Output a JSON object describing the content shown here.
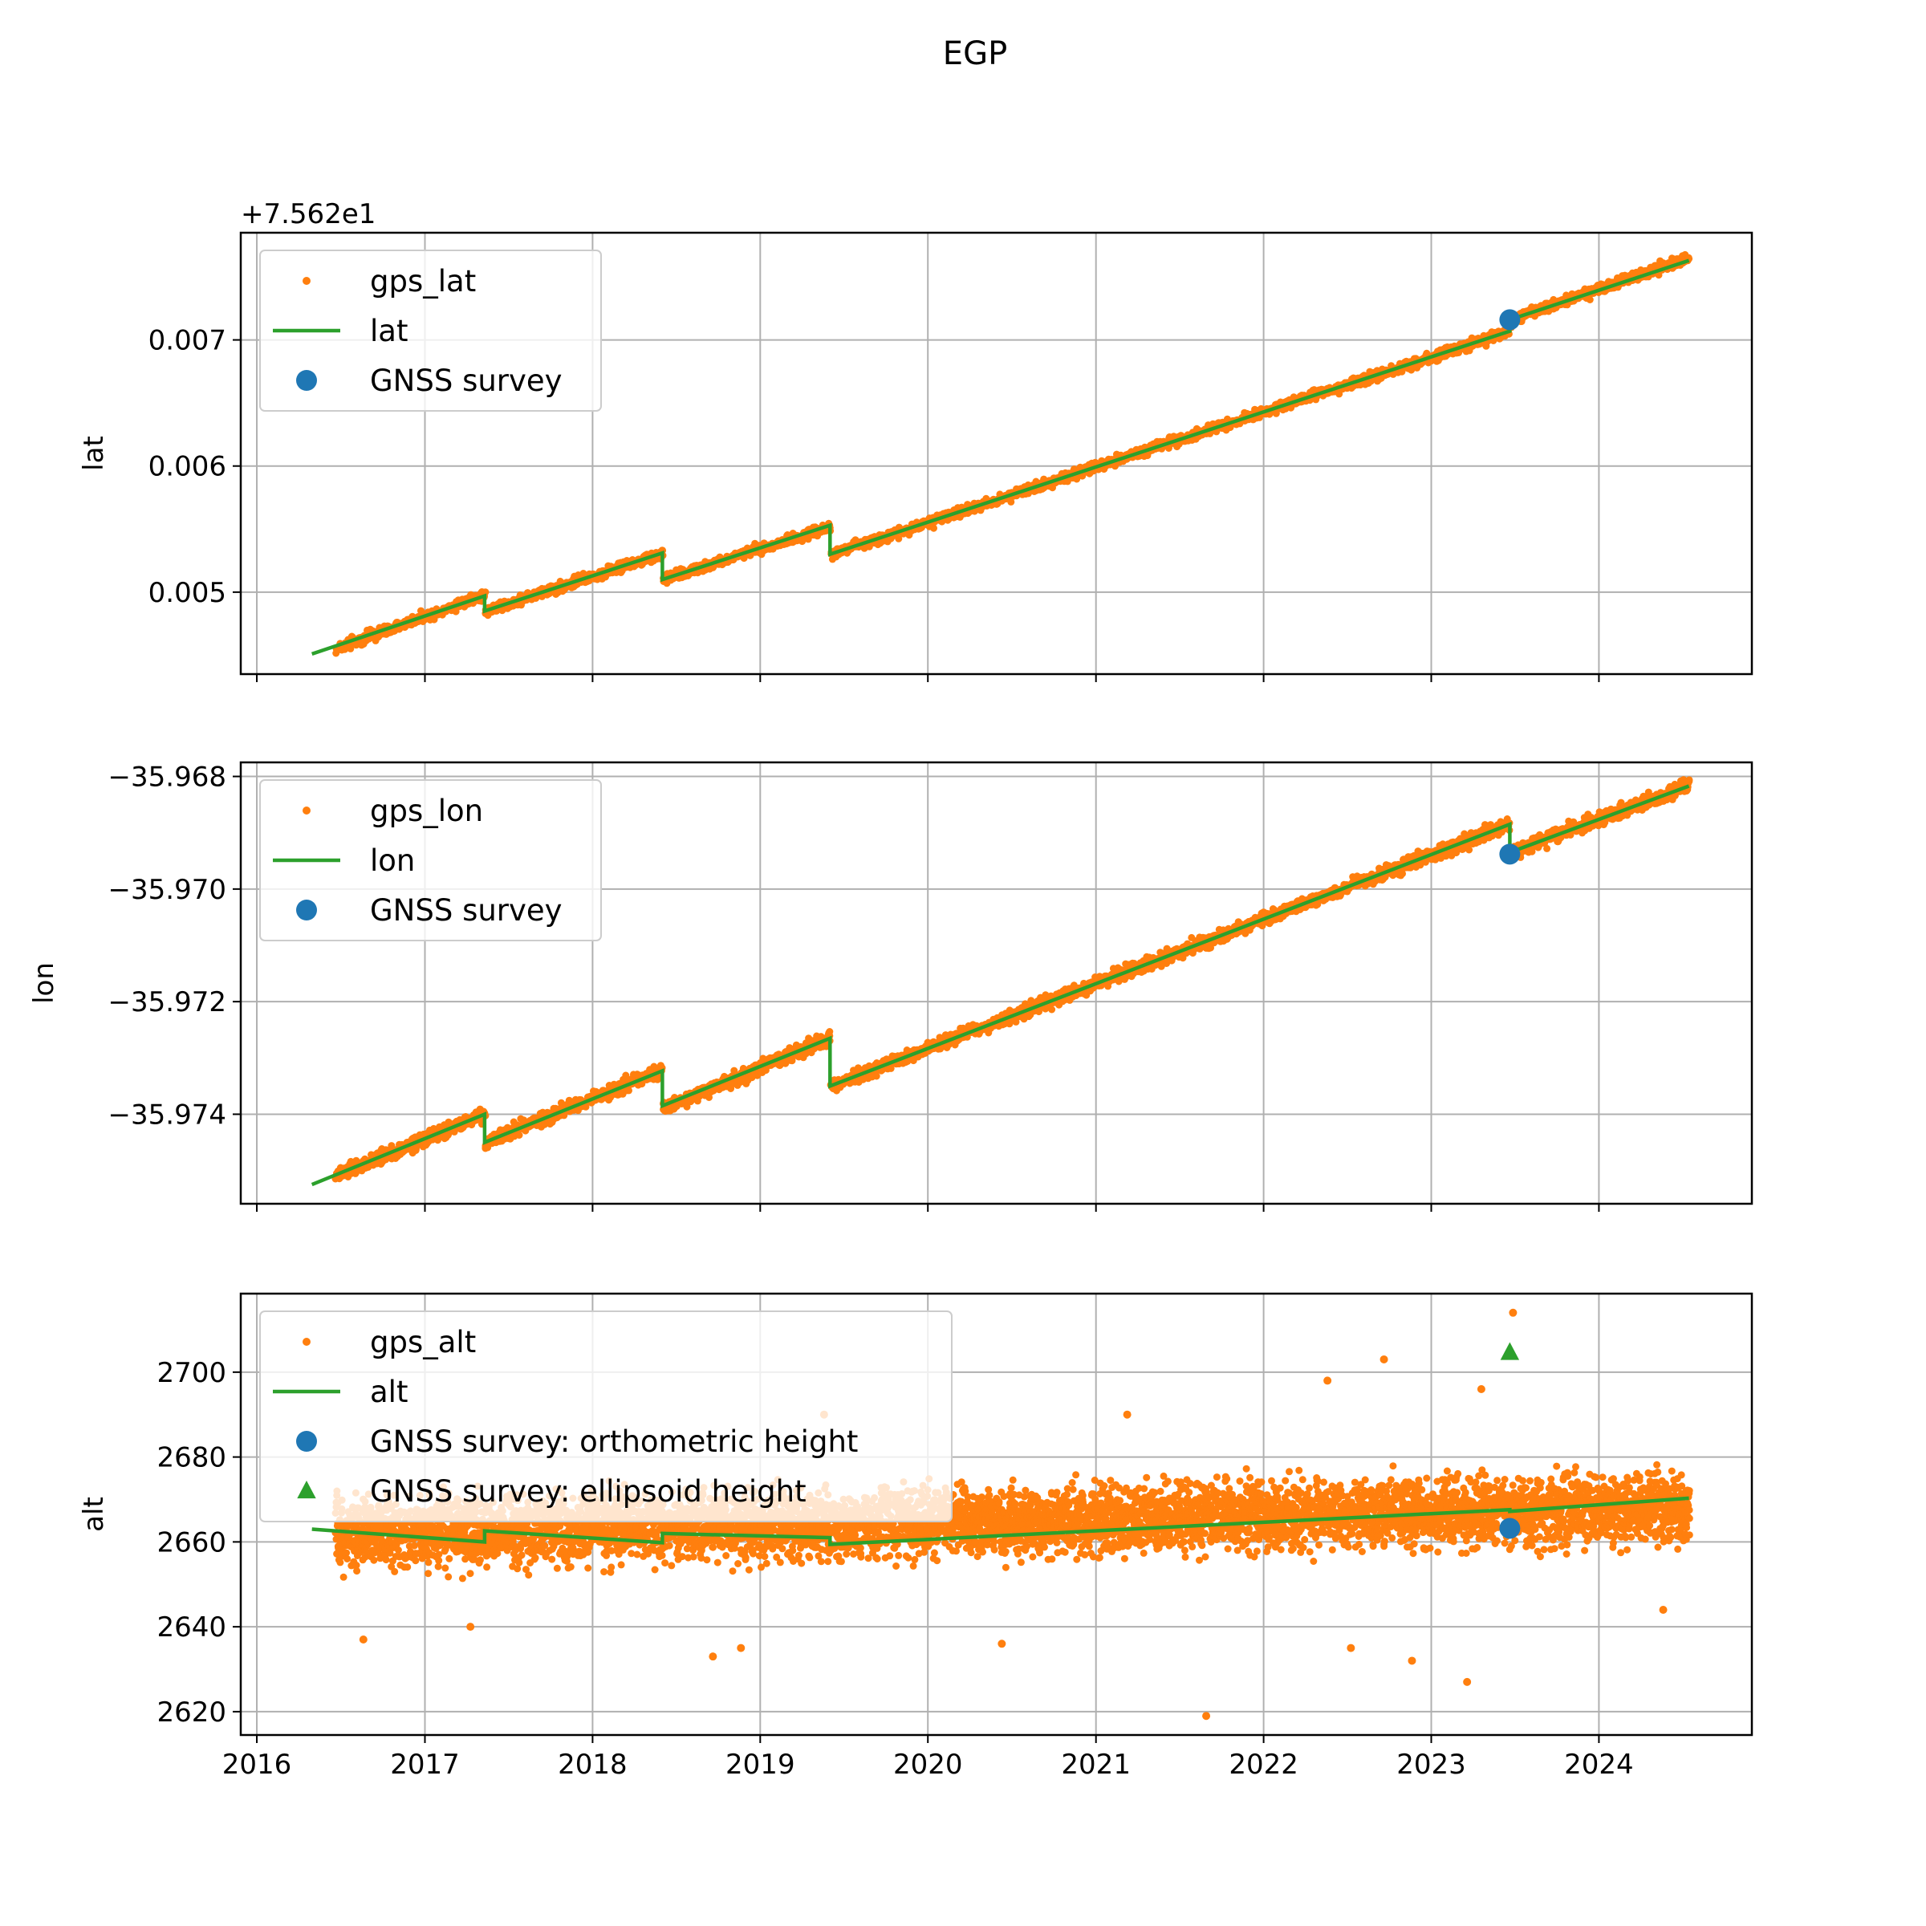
{
  "figure_title": "EGP",
  "colors": {
    "gps": "#ff7f0e",
    "fit": "#2ca02c",
    "survey_ortho": "#1f77b4",
    "survey_ellipsoid": "#2ca02c",
    "grid": "#b0b0b0"
  },
  "x_axis": {
    "type": "date",
    "range": [
      "2015-11-27",
      "2024-11-29"
    ],
    "ticks": [
      "2016",
      "2017",
      "2018",
      "2019",
      "2020",
      "2021",
      "2022",
      "2023",
      "2024"
    ],
    "grid": true
  },
  "chart_data": [
    {
      "type": "scatter",
      "ylabel": "lat",
      "offset_text": "+7.562e1",
      "ylim": [
        0.00435,
        0.00785
      ],
      "yticks": [
        0.005,
        0.006,
        0.007
      ],
      "ytick_labels": [
        "0.005",
        "0.006",
        "0.007"
      ],
      "grid": true,
      "legend_position": "upper-left",
      "legend": [
        {
          "label": "gps_lat",
          "marker": "dot",
          "color": "#ff7f0e"
        },
        {
          "label": "lat",
          "marker": "line",
          "color": "#2ca02c"
        },
        {
          "label": "GNSS survey",
          "marker": "circle",
          "color": "#1f77b4"
        }
      ],
      "series": [
        {
          "name": "gps_lat",
          "style": "points",
          "color": "#ff7f0e",
          "scatter_spread": 4e-05,
          "segments": [
            {
              "start": "2016-06-20",
              "end": "2017-05-10",
              "y_start": 0.00455,
              "y_end": 0.00498
            },
            {
              "start": "2017-05-12",
              "end": "2018-06-01",
              "y_start": 0.00485,
              "y_end": 0.0053
            },
            {
              "start": "2018-06-03",
              "end": "2019-06-01",
              "y_start": 0.0051,
              "y_end": 0.00552
            },
            {
              "start": "2019-06-03",
              "end": "2023-06-20",
              "y_start": 0.0053,
              "y_end": 0.00707
            },
            {
              "start": "2023-06-22",
              "end": "2024-07-15",
              "y_start": 0.00716,
              "y_end": 0.00765
            }
          ]
        },
        {
          "name": "lat",
          "style": "line",
          "color": "#2ca02c",
          "points": [
            [
              "2016-04-30",
              0.00451
            ],
            [
              "2017-05-11",
              0.00497
            ],
            [
              "2017-05-11",
              0.00485
            ],
            [
              "2018-06-02",
              0.00531
            ],
            [
              "2018-06-02",
              0.0051
            ],
            [
              "2019-06-02",
              0.00553
            ],
            [
              "2019-06-02",
              0.0053
            ],
            [
              "2023-06-21",
              0.00707
            ],
            [
              "2023-06-21",
              0.00716
            ],
            [
              "2024-07-15",
              0.00763
            ]
          ]
        },
        {
          "name": "GNSS survey",
          "style": "marker",
          "marker": "circle",
          "color": "#1f77b4",
          "points": [
            [
              "2023-06-21",
              0.00716
            ]
          ]
        }
      ]
    },
    {
      "type": "scatter",
      "ylabel": "lon",
      "offset_text": "",
      "ylim": [
        -35.97559,
        -35.96775
      ],
      "yticks": [
        -35.974,
        -35.972,
        -35.97,
        -35.968
      ],
      "ytick_labels": [
        "−35.974",
        "−35.972",
        "−35.970",
        "−35.968"
      ],
      "grid": true,
      "legend_position": "upper-left",
      "legend": [
        {
          "label": "gps_lon",
          "marker": "dot",
          "color": "#ff7f0e"
        },
        {
          "label": "lon",
          "marker": "line",
          "color": "#2ca02c"
        },
        {
          "label": "GNSS survey",
          "marker": "circle",
          "color": "#1f77b4"
        }
      ],
      "series": [
        {
          "name": "gps_lon",
          "style": "points",
          "color": "#ff7f0e",
          "scatter_spread": 0.00012,
          "segments": [
            {
              "start": "2016-06-20",
              "end": "2017-05-10",
              "y_start": -35.9751,
              "y_end": -35.974
            },
            {
              "start": "2017-05-12",
              "end": "2018-06-01",
              "y_start": -35.9745,
              "y_end": -35.9732
            },
            {
              "start": "2018-06-03",
              "end": "2019-06-01",
              "y_start": -35.9739,
              "y_end": -35.97265
            },
            {
              "start": "2019-06-03",
              "end": "2023-06-20",
              "y_start": -35.9735,
              "y_end": -35.96885
            },
            {
              "start": "2023-06-22",
              "end": "2024-07-15",
              "y_start": -35.96935,
              "y_end": -35.96815
            }
          ]
        },
        {
          "name": "lon",
          "style": "line",
          "color": "#2ca02c",
          "points": [
            [
              "2016-04-30",
              -35.97525
            ],
            [
              "2017-05-11",
              -35.974
            ],
            [
              "2017-05-11",
              -35.9745
            ],
            [
              "2018-06-02",
              -35.97323
            ],
            [
              "2018-06-02",
              -35.97385
            ],
            [
              "2019-06-02",
              -35.97265
            ],
            [
              "2019-06-02",
              -35.9735
            ],
            [
              "2023-06-21",
              -35.96885
            ],
            [
              "2023-06-21",
              -35.96935
            ],
            [
              "2024-07-15",
              -35.96817
            ]
          ]
        },
        {
          "name": "GNSS survey",
          "style": "marker",
          "marker": "circle",
          "color": "#1f77b4",
          "points": [
            [
              "2023-06-21",
              -35.96938
            ]
          ]
        }
      ]
    },
    {
      "type": "scatter",
      "ylabel": "alt",
      "offset_text": "",
      "ylim": [
        2614.5,
        2718.5
      ],
      "yticks": [
        2620,
        2640,
        2660,
        2680,
        2700
      ],
      "ytick_labels": [
        "2620",
        "2640",
        "2660",
        "2680",
        "2700"
      ],
      "grid": true,
      "legend_position": "upper-left",
      "legend": [
        {
          "label": "gps_alt",
          "marker": "dot",
          "color": "#ff7f0e"
        },
        {
          "label": "alt",
          "marker": "line",
          "color": "#2ca02c"
        },
        {
          "label": "GNSS survey: orthometric height",
          "marker": "circle",
          "color": "#1f77b4"
        },
        {
          "label": "GNSS survey: ellipsoid height",
          "marker": "triangle",
          "color": "#2ca02c"
        }
      ],
      "series": [
        {
          "name": "gps_alt",
          "style": "points",
          "color": "#ff7f0e",
          "scatter_spread": 8,
          "segments": [
            {
              "start": "2016-06-20",
              "end": "2024-07-15",
              "y_start": 2662,
              "y_end": 2668
            }
          ],
          "outliers": [
            [
              "2021-08-29",
              2619
            ],
            [
              "2023-03-20",
              2627
            ],
            [
              "2023-06-28",
              2714
            ],
            [
              "2022-09-20",
              2703
            ],
            [
              "2022-05-20",
              2698
            ],
            [
              "2023-04-20",
              2696
            ],
            [
              "2021-03-10",
              2690
            ],
            [
              "2019-05-20",
              2690
            ],
            [
              "2018-09-20",
              2633
            ],
            [
              "2018-11-20",
              2635
            ],
            [
              "2022-11-20",
              2632
            ],
            [
              "2022-07-10",
              2635
            ],
            [
              "2016-08-20",
              2637
            ],
            [
              "2017-04-10",
              2640
            ],
            [
              "2020-06-10",
              2636
            ],
            [
              "2024-05-20",
              2644
            ]
          ]
        },
        {
          "name": "alt",
          "style": "line",
          "color": "#2ca02c",
          "points": [
            [
              "2016-04-30",
              2663
            ],
            [
              "2017-05-11",
              2660
            ],
            [
              "2017-05-11",
              2662.6
            ],
            [
              "2018-06-02",
              2659.8
            ],
            [
              "2018-06-02",
              2662
            ],
            [
              "2019-06-02",
              2661
            ],
            [
              "2019-06-02",
              2659.4
            ],
            [
              "2023-06-21",
              2667.6
            ],
            [
              "2023-06-21",
              2667.2
            ],
            [
              "2024-07-15",
              2670.3
            ]
          ]
        },
        {
          "name": "GNSS survey: orthometric height",
          "style": "marker",
          "marker": "circle",
          "color": "#1f77b4",
          "points": [
            [
              "2023-06-21",
              2663.2
            ]
          ]
        },
        {
          "name": "GNSS survey: ellipsoid height",
          "style": "marker",
          "marker": "triangle",
          "color": "#2ca02c",
          "points": [
            [
              "2023-06-21",
              2704.6
            ]
          ]
        }
      ]
    }
  ]
}
